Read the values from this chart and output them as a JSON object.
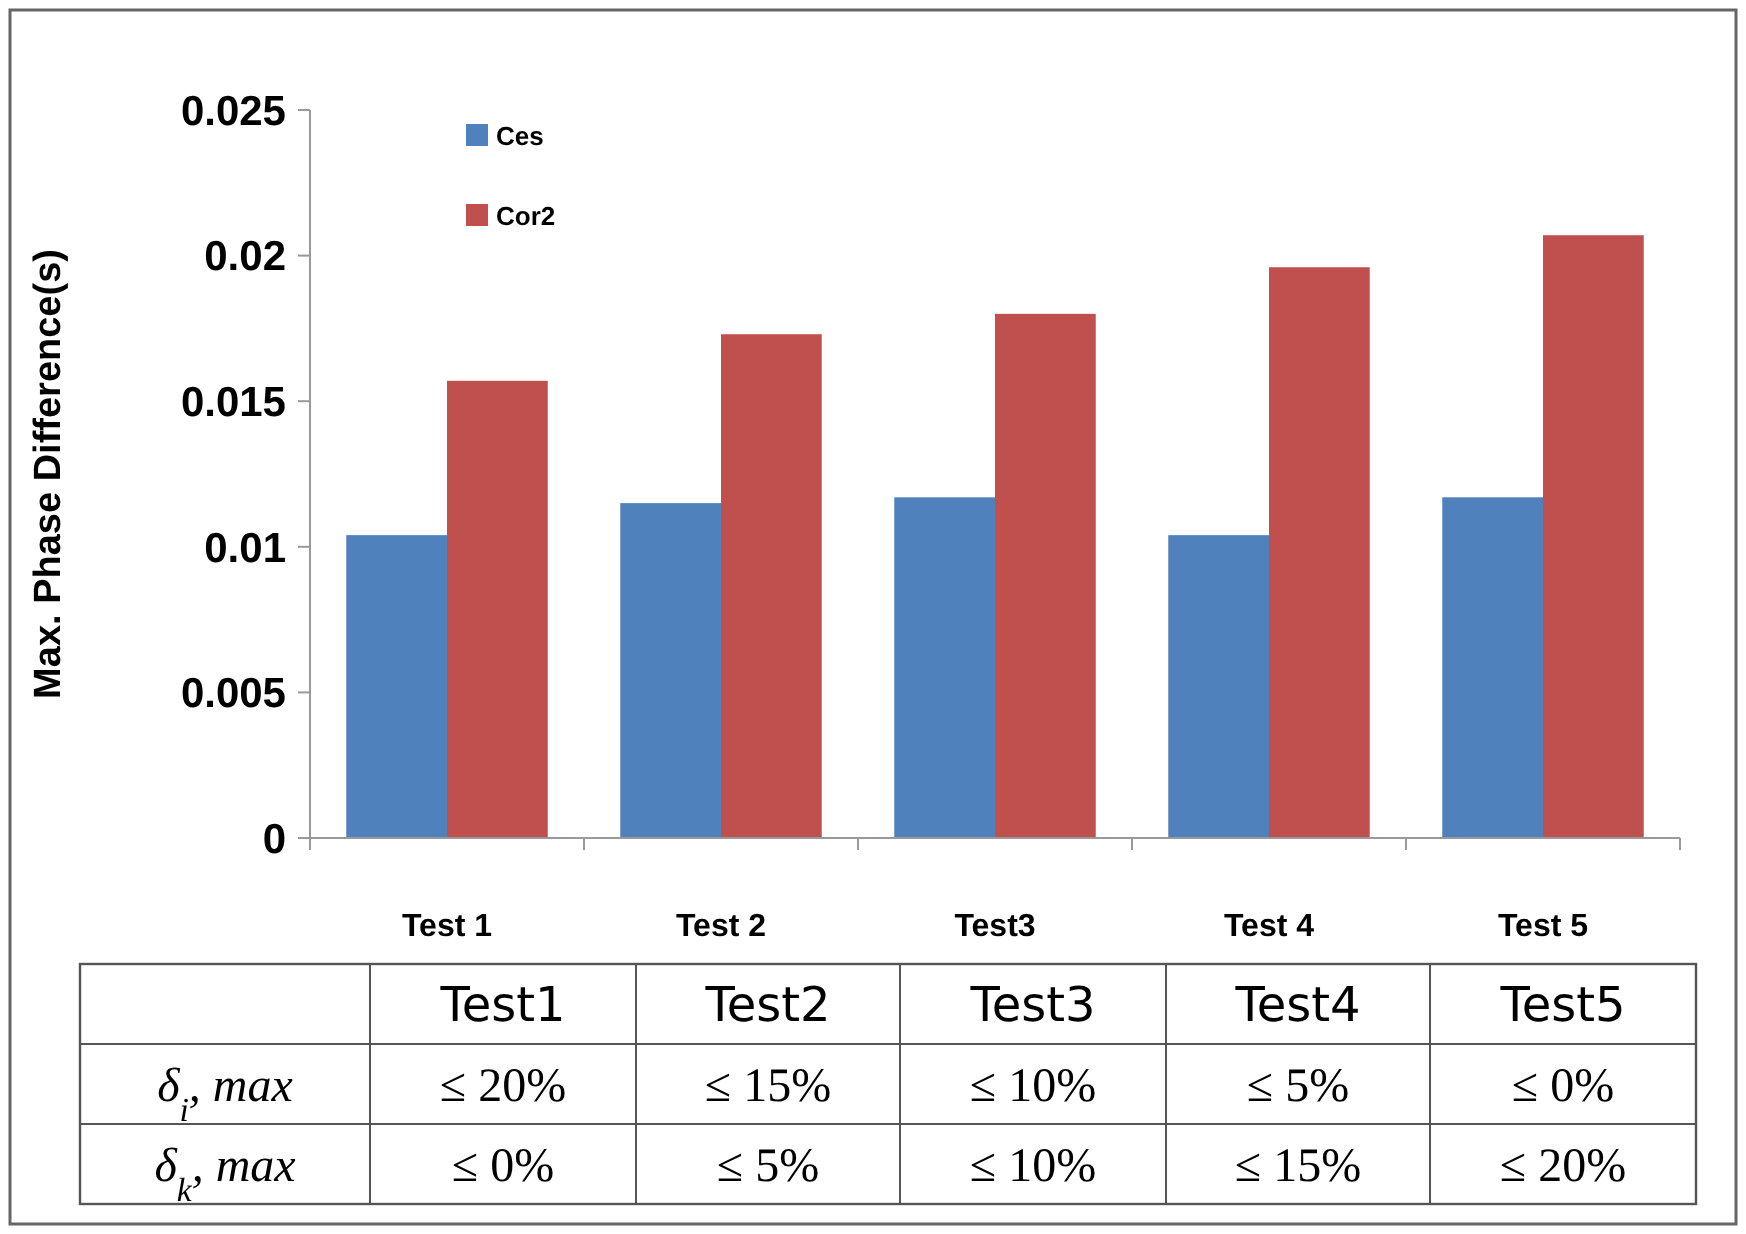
{
  "chart_data": {
    "type": "bar",
    "ylabel": "Max. Phase Difference(s)",
    "categories": [
      "Test 1",
      "Test 2",
      "Test3",
      "Test 4",
      "Test 5"
    ],
    "series": [
      {
        "name": "Ces",
        "color": "#4f81bd",
        "values": [
          0.0104,
          0.0115,
          0.0117,
          0.0104,
          0.0117
        ]
      },
      {
        "name": "Cor2",
        "color": "#c0504d",
        "values": [
          0.0157,
          0.0173,
          0.018,
          0.0196,
          0.0207
        ]
      }
    ],
    "ylim": [
      0,
      0.025
    ],
    "yticks": [
      {
        "value": 0,
        "label": "0"
      },
      {
        "value": 0.005,
        "label": "0.005"
      },
      {
        "value": 0.01,
        "label": "0.01"
      },
      {
        "value": 0.015,
        "label": "0.015"
      },
      {
        "value": 0.02,
        "label": "0.02"
      },
      {
        "value": 0.025,
        "label": "0.025"
      }
    ],
    "grid": false,
    "legend": "top left",
    "annotations": [
      "Test1",
      "Test2",
      "Test3",
      "Test4",
      "Test5",
      "δ$_{i}$, max",
      "≤ 20%",
      "≤ 15%",
      "≤ 10%",
      "≤ 5%",
      "≤ 0%",
      "δ$_{k}$, max",
      "≤ 0%",
      "≤ 5%",
      "≤ 10%",
      "≤ 15%",
      "≤ 20%"
    ]
  }
}
